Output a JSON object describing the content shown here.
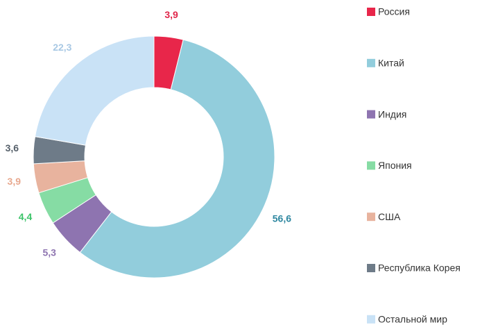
{
  "chart_data": {
    "type": "donut",
    "categories": [
      "Россия",
      "Китай",
      "Индия",
      "Япония",
      "США",
      "Республика Корея",
      "Остальной мир"
    ],
    "values": [
      3.9,
      56.6,
      5.3,
      4.4,
      3.9,
      3.6,
      22.3
    ],
    "value_labels": [
      "3,9",
      "56,6",
      "5,3",
      "4,4",
      "3,9",
      "3,6",
      "22,3"
    ],
    "colors": [
      "#e8264a",
      "#92cddc",
      "#8e74b0",
      "#86dca4",
      "#e8b39e",
      "#6e7b88",
      "#c9e2f6"
    ],
    "label_colors": [
      "#e0264a",
      "#2e87a0",
      "#8e74b0",
      "#3dc46a",
      "#e8a88e",
      "#555f69",
      "#a8c8e4"
    ],
    "legend": "right"
  }
}
